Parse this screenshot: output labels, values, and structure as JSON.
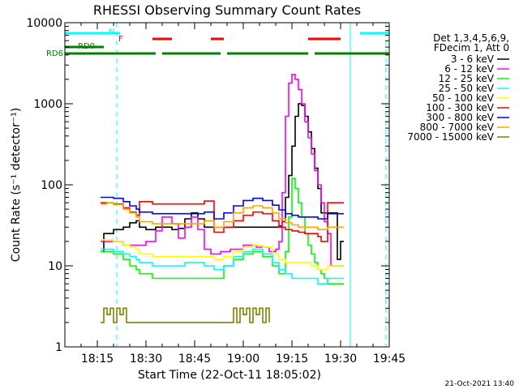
{
  "chart_data": {
    "type": "line",
    "title": "RHESSI Observing Summary Count Rates",
    "xlabel": "Start Time (22-Oct-11 18:05:02)",
    "ylabel": "Count Rate (s⁻¹ detector⁻¹)",
    "x_unit": "minutes of day (UT)",
    "xlim": [
      1085,
      1185
    ],
    "ylim": [
      1,
      10000
    ],
    "y_scale": "log",
    "x_ticks": [
      {
        "value": 1095,
        "label": "18:15"
      },
      {
        "value": 1110,
        "label": "18:30"
      },
      {
        "value": 1125,
        "label": "18:45"
      },
      {
        "value": 1140,
        "label": "19:00"
      },
      {
        "value": 1155,
        "label": "19:15"
      },
      {
        "value": 1170,
        "label": "19:30"
      },
      {
        "value": 1185,
        "label": "19:45"
      }
    ],
    "y_ticks": [
      {
        "value": 1,
        "label": "1"
      },
      {
        "value": 10,
        "label": "10"
      },
      {
        "value": 100,
        "label": "100"
      },
      {
        "value": 1000,
        "label": "1000"
      },
      {
        "value": 10000,
        "label": "10000"
      }
    ],
    "legend_header": [
      "Det 1,3,4,5,6,9,",
      "FDecim 1, Att 0"
    ],
    "legend_position": "right",
    "series": [
      {
        "name": "3 - 6 keV",
        "color": "#000000",
        "x": [
          1096,
          1097,
          1100,
          1103,
          1105,
          1107,
          1108,
          1110,
          1111,
          1113,
          1115,
          1118,
          1120,
          1122,
          1124,
          1126,
          1128,
          1130,
          1133,
          1136,
          1140,
          1144,
          1148,
          1150,
          1151,
          1152,
          1153,
          1154,
          1155,
          1156,
          1157,
          1158,
          1159,
          1160,
          1161,
          1162,
          1163,
          1164,
          1165,
          1166,
          1167,
          1168,
          1169,
          1170,
          1171
        ],
        "y": [
          15,
          25,
          28,
          30,
          34,
          36,
          30,
          28,
          28,
          30,
          30,
          28,
          29,
          38,
          45,
          38,
          30,
          30,
          30,
          30,
          30,
          30,
          30,
          30,
          31,
          35,
          70,
          130,
          300,
          700,
          1000,
          950,
          700,
          450,
          280,
          160,
          90,
          45,
          45,
          45,
          45,
          45,
          12,
          20,
          20
        ]
      },
      {
        "name": "6 - 12 keV",
        "color": "#ff00ff",
        "x": [
          1096,
          1097,
          1100,
          1103,
          1105,
          1107,
          1108,
          1110,
          1111,
          1113,
          1115,
          1118,
          1120,
          1122,
          1124,
          1126,
          1128,
          1130,
          1133,
          1136,
          1140,
          1144,
          1148,
          1150,
          1151,
          1152,
          1153,
          1154,
          1155,
          1156,
          1157,
          1158,
          1159,
          1160,
          1161,
          1162,
          1163,
          1164,
          1165,
          1166,
          1167,
          1168,
          1169,
          1170,
          1171
        ],
        "y": [
          20,
          20,
          20,
          18,
          18,
          18,
          18,
          20,
          20,
          27,
          40,
          33,
          22,
          30,
          40,
          28,
          16,
          14,
          15,
          16,
          18,
          17,
          15,
          16,
          20,
          80,
          700,
          1800,
          2300,
          2000,
          1500,
          1000,
          600,
          380,
          240,
          150,
          100,
          60,
          35,
          25,
          10,
          10,
          10,
          10,
          10
        ]
      },
      {
        "name": "12 - 25 keV",
        "color": "#00ff00",
        "x": [
          1096,
          1098,
          1100,
          1103,
          1105,
          1107,
          1108,
          1110,
          1112,
          1115,
          1118,
          1120,
          1122,
          1125,
          1128,
          1131,
          1134,
          1137,
          1140,
          1143,
          1146,
          1149,
          1151,
          1153,
          1154,
          1155,
          1156,
          1157,
          1158,
          1159,
          1160,
          1161,
          1162,
          1163,
          1164,
          1165,
          1166,
          1168,
          1169,
          1171
        ],
        "y": [
          15,
          15,
          14,
          12,
          10,
          9,
          8,
          8,
          7,
          7,
          7,
          7,
          7,
          7,
          7,
          7,
          10,
          12,
          14,
          15,
          13,
          10,
          8,
          15,
          40,
          120,
          90,
          60,
          40,
          25,
          18,
          14,
          11,
          9,
          8,
          7,
          6,
          6,
          6,
          6
        ]
      },
      {
        "name": "25 - 50 keV",
        "color": "#00ffff",
        "x": [
          1096,
          1098,
          1100,
          1103,
          1105,
          1107,
          1108,
          1110,
          1112,
          1115,
          1118,
          1120,
          1122,
          1125,
          1128,
          1131,
          1134,
          1137,
          1140,
          1143,
          1146,
          1149,
          1151,
          1153,
          1155,
          1157,
          1159,
          1161,
          1163,
          1165,
          1166,
          1168,
          1169,
          1171
        ],
        "y": [
          16,
          16,
          15,
          14,
          13,
          12,
          11,
          11,
          10,
          10,
          10,
          10,
          11,
          11,
          10,
          9,
          10,
          13,
          15,
          16,
          14,
          11,
          9,
          8,
          7,
          7,
          7,
          7,
          6,
          6,
          7,
          7,
          7,
          7
        ]
      },
      {
        "name": "50 - 100 keV",
        "color": "#ffff00",
        "x": [
          1096,
          1098,
          1100,
          1103,
          1105,
          1107,
          1108,
          1110,
          1112,
          1115,
          1118,
          1120,
          1122,
          1125,
          1128,
          1131,
          1134,
          1137,
          1140,
          1143,
          1146,
          1149,
          1151,
          1153,
          1155,
          1157,
          1159,
          1161,
          1163,
          1165,
          1166,
          1168,
          1169,
          1171
        ],
        "y": [
          21,
          21,
          20,
          18,
          17,
          16,
          14,
          14,
          13,
          13,
          13,
          13,
          13,
          13,
          13,
          12,
          13,
          15,
          17,
          18,
          17,
          14,
          12,
          11,
          11,
          11,
          11,
          10,
          9,
          9,
          10,
          10,
          10,
          10
        ]
      },
      {
        "name": "100 - 300 keV",
        "color": "#ff0000",
        "x": [
          1096,
          1098,
          1100,
          1103,
          1105,
          1107,
          1108,
          1110,
          1112,
          1115,
          1118,
          1120,
          1122,
          1125,
          1128,
          1131,
          1134,
          1137,
          1140,
          1143,
          1146,
          1149,
          1151,
          1153,
          1155,
          1157,
          1159,
          1161,
          1163,
          1164,
          1165,
          1166,
          1168,
          1169,
          1171
        ],
        "y": [
          60,
          60,
          58,
          52,
          46,
          42,
          62,
          62,
          58,
          58,
          58,
          58,
          58,
          58,
          63,
          26,
          30,
          36,
          42,
          46,
          44,
          36,
          30,
          28,
          27,
          26,
          25,
          25,
          23,
          20,
          20,
          60,
          60,
          60,
          60
        ]
      },
      {
        "name": "300 - 800 keV",
        "color": "#0000ff",
        "x": [
          1096,
          1098,
          1100,
          1103,
          1105,
          1107,
          1108,
          1110,
          1112,
          1115,
          1118,
          1120,
          1122,
          1125,
          1128,
          1131,
          1134,
          1137,
          1140,
          1143,
          1146,
          1149,
          1151,
          1153,
          1155,
          1157,
          1159,
          1161,
          1163,
          1165,
          1166,
          1168,
          1169,
          1171
        ],
        "y": [
          70,
          70,
          68,
          62,
          55,
          50,
          46,
          46,
          44,
          44,
          44,
          44,
          44,
          44,
          46,
          38,
          45,
          55,
          64,
          68,
          64,
          56,
          49,
          44,
          42,
          40,
          40,
          40,
          38,
          38,
          44,
          44,
          44,
          44
        ]
      },
      {
        "name": "800 - 7000 keV",
        "color": "#ffa500",
        "x": [
          1096,
          1098,
          1100,
          1103,
          1105,
          1107,
          1108,
          1110,
          1112,
          1115,
          1118,
          1120,
          1122,
          1125,
          1128,
          1131,
          1134,
          1137,
          1140,
          1143,
          1146,
          1149,
          1151,
          1153,
          1155,
          1157,
          1159,
          1161,
          1163,
          1165,
          1166,
          1168,
          1169,
          1171
        ],
        "y": [
          58,
          60,
          57,
          50,
          45,
          40,
          35,
          35,
          33,
          33,
          33,
          33,
          33,
          33,
          36,
          30,
          35,
          45,
          52,
          55,
          52,
          45,
          38,
          34,
          32,
          30,
          30,
          30,
          28,
          28,
          30,
          30,
          30,
          30
        ]
      },
      {
        "name": "7000 - 15000 keV",
        "color": "#808000",
        "x": [
          1096,
          1097,
          1098,
          1099,
          1100,
          1101,
          1102,
          1103,
          1104,
          1105,
          1136,
          1137,
          1138,
          1139,
          1140,
          1141,
          1142,
          1143,
          1144,
          1145,
          1146,
          1147,
          1148
        ],
        "y": [
          2,
          3,
          2.5,
          3,
          2,
          3,
          2.5,
          3,
          2,
          2,
          2,
          3,
          2,
          3,
          2.5,
          3,
          2,
          3,
          2.5,
          3,
          2,
          3,
          2
        ]
      }
    ],
    "event_bars": [
      {
        "label": "N",
        "color": "#00ffff",
        "segments": [
          [
            1085,
            1102
          ],
          [
            1176,
            1185
          ]
        ]
      },
      {
        "label": "F",
        "color": "#ff0000",
        "segments": [
          [
            1112,
            1118
          ],
          [
            1130,
            1134
          ],
          [
            1160,
            1170
          ]
        ]
      },
      {
        "label": "RD0",
        "color": "#008000",
        "segments": [
          [
            1085,
            1097
          ]
        ]
      },
      {
        "label": "RD6",
        "color": "#008000",
        "segments": [
          [
            1085,
            1113
          ],
          [
            1115,
            1133
          ],
          [
            1135,
            1160
          ],
          [
            1162,
            1185
          ]
        ]
      }
    ],
    "solid_vlines": [
      1085,
      1173
    ],
    "dashed_vlines": [
      1101,
      1184
    ],
    "footnote": "21-Oct-2021 13:40"
  }
}
